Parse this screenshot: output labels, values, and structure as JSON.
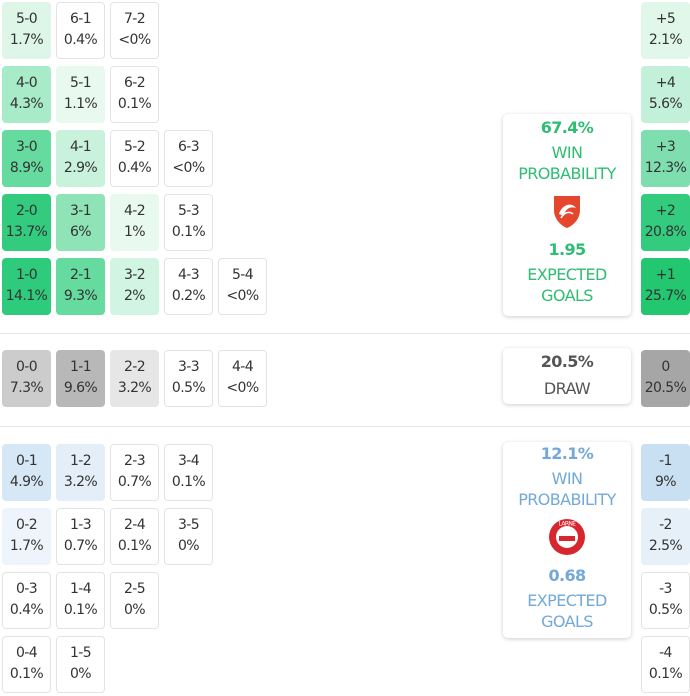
{
  "home": {
    "rows": [
      [
        {
          "s": "5-0",
          "p": "1.7%",
          "bg": "#ddf6e8"
        },
        {
          "s": "6-1",
          "p": "0.4%",
          "bg": "#ffffff"
        },
        {
          "s": "7-2",
          "p": "<0%",
          "bg": "#ffffff"
        }
      ],
      [
        {
          "s": "4-0",
          "p": "4.3%",
          "bg": "#a8ebc8"
        },
        {
          "s": "5-1",
          "p": "1.1%",
          "bg": "#e8f9ef"
        },
        {
          "s": "6-2",
          "p": "0.1%",
          "bg": "#ffffff"
        }
      ],
      [
        {
          "s": "3-0",
          "p": "8.9%",
          "bg": "#66dba0"
        },
        {
          "s": "4-1",
          "p": "2.9%",
          "bg": "#c8f2dc"
        },
        {
          "s": "5-2",
          "p": "0.4%",
          "bg": "#ffffff"
        },
        {
          "s": "6-3",
          "p": "<0%",
          "bg": "#ffffff"
        }
      ],
      [
        {
          "s": "2-0",
          "p": "13.7%",
          "bg": "#33cc7f"
        },
        {
          "s": "3-1",
          "p": "6%",
          "bg": "#8ee3b7"
        },
        {
          "s": "4-2",
          "p": "1%",
          "bg": "#e8f9ef"
        },
        {
          "s": "5-3",
          "p": "0.1%",
          "bg": "#ffffff"
        }
      ],
      [
        {
          "s": "1-0",
          "p": "14.1%",
          "bg": "#2ecb7c"
        },
        {
          "s": "2-1",
          "p": "9.3%",
          "bg": "#66dba0"
        },
        {
          "s": "3-2",
          "p": "2%",
          "bg": "#d2f4e2"
        },
        {
          "s": "4-3",
          "p": "0.2%",
          "bg": "#ffffff"
        },
        {
          "s": "5-4",
          "p": "<0%",
          "bg": "#ffffff"
        }
      ]
    ],
    "margins": [
      {
        "s": "+5",
        "p": "2.1%",
        "bg": "#e0f7ea"
      },
      {
        "s": "+4",
        "p": "5.6%",
        "bg": "#c3f0d8"
      },
      {
        "s": "+3",
        "p": "12.3%",
        "bg": "#7fdeaf"
      },
      {
        "s": "+2",
        "p": "20.8%",
        "bg": "#33cc7f"
      },
      {
        "s": "+1",
        "p": "25.7%",
        "bg": "#22c76f"
      }
    ],
    "card": {
      "win_pct": "67.4%",
      "win_label": "WIN PROBABILITY",
      "xg": "1.95",
      "xg_label": "EXPECTED GOALS",
      "color": "#2ebd72",
      "crest": "seagull-crest"
    }
  },
  "draw": {
    "rows": [
      [
        {
          "s": "0-0",
          "p": "7.3%",
          "bg": "#cccccc"
        },
        {
          "s": "1-1",
          "p": "9.6%",
          "bg": "#b8b8b8"
        },
        {
          "s": "2-2",
          "p": "3.2%",
          "bg": "#e6e6e6"
        },
        {
          "s": "3-3",
          "p": "0.5%",
          "bg": "#ffffff"
        },
        {
          "s": "4-4",
          "p": "<0%",
          "bg": "#ffffff"
        }
      ]
    ],
    "margins": [
      {
        "s": "0",
        "p": "20.5%",
        "bg": "#a6a6a6"
      }
    ],
    "card": {
      "pct": "20.5%",
      "label": "DRAW",
      "color": "#555555"
    }
  },
  "away": {
    "rows": [
      [
        {
          "s": "0-1",
          "p": "4.9%",
          "bg": "#d6e7f5"
        },
        {
          "s": "1-2",
          "p": "3.2%",
          "bg": "#e3eef8"
        },
        {
          "s": "2-3",
          "p": "0.7%",
          "bg": "#ffffff"
        },
        {
          "s": "3-4",
          "p": "0.1%",
          "bg": "#ffffff"
        }
      ],
      [
        {
          "s": "0-2",
          "p": "1.7%",
          "bg": "#edf4fb"
        },
        {
          "s": "1-3",
          "p": "0.7%",
          "bg": "#ffffff"
        },
        {
          "s": "2-4",
          "p": "0.1%",
          "bg": "#ffffff"
        },
        {
          "s": "3-5",
          "p": "0%",
          "bg": "#ffffff"
        }
      ],
      [
        {
          "s": "0-3",
          "p": "0.4%",
          "bg": "#ffffff"
        },
        {
          "s": "1-4",
          "p": "0.1%",
          "bg": "#ffffff"
        },
        {
          "s": "2-5",
          "p": "0%",
          "bg": "#ffffff"
        }
      ],
      [
        {
          "s": "0-4",
          "p": "0.1%",
          "bg": "#ffffff"
        },
        {
          "s": "1-5",
          "p": "0%",
          "bg": "#ffffff"
        }
      ]
    ],
    "margins": [
      {
        "s": "-1",
        "p": "9%",
        "bg": "#c9dff2"
      },
      {
        "s": "-2",
        "p": "2.5%",
        "bg": "#e6f0f9"
      },
      {
        "s": "-3",
        "p": "0.5%",
        "bg": "#ffffff"
      },
      {
        "s": "-4",
        "p": "0.1%",
        "bg": "#ffffff"
      }
    ],
    "card": {
      "win_pct": "12.1%",
      "win_label": "WIN PROBABILITY",
      "xg": "0.68",
      "xg_label": "EXPECTED GOALS",
      "color": "#72a9d8",
      "crest": "larne-crest",
      "crest_text": "LARNE"
    }
  }
}
